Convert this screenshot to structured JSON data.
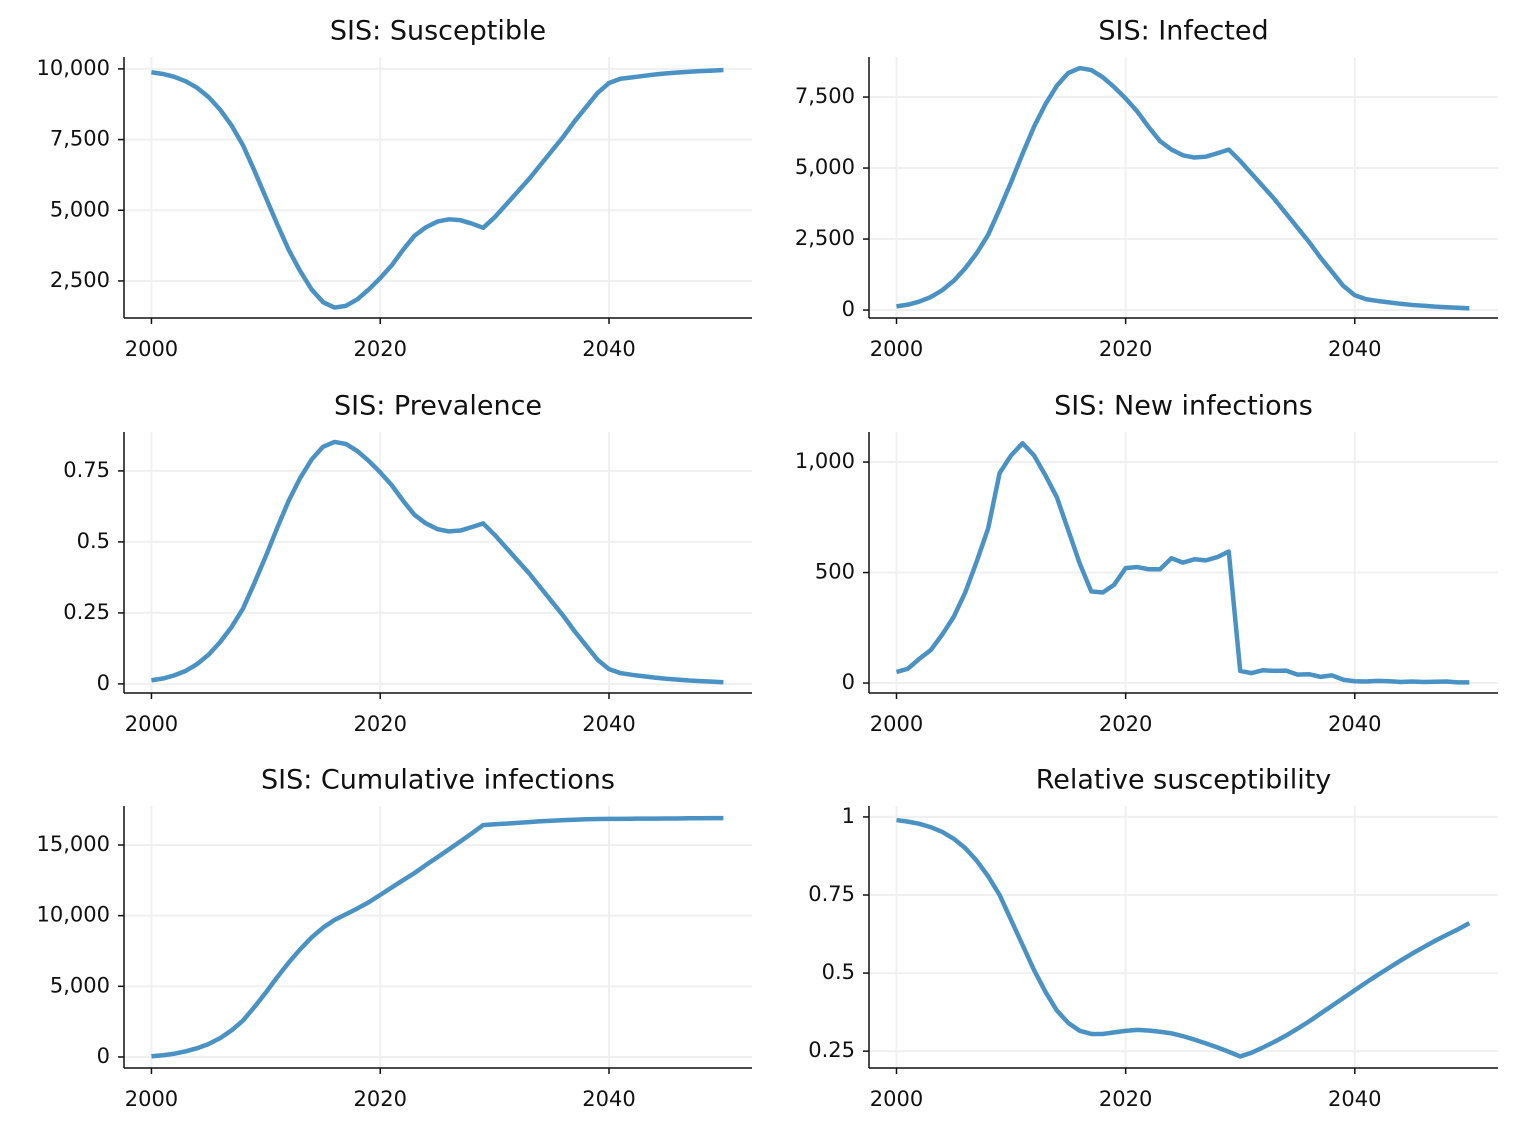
{
  "chart_data": [
    {
      "type": "line",
      "title": "SIS: Susceptible",
      "color": "#4b92c4",
      "grid": true,
      "x": [
        2000,
        2001,
        2002,
        2003,
        2004,
        2005,
        2006,
        2007,
        2008,
        2009,
        2010,
        2011,
        2012,
        2013,
        2014,
        2015,
        2016,
        2017,
        2018,
        2019,
        2020,
        2021,
        2022,
        2023,
        2024,
        2025,
        2026,
        2027,
        2028,
        2029,
        2030,
        2031,
        2032,
        2033,
        2034,
        2035,
        2036,
        2037,
        2038,
        2039,
        2040,
        2041,
        2042,
        2043,
        2044,
        2045,
        2046,
        2047,
        2048,
        2049,
        2050
      ],
      "values": [
        9880,
        9820,
        9720,
        9560,
        9330,
        9000,
        8560,
        8000,
        7300,
        6400,
        5450,
        4500,
        3600,
        2850,
        2200,
        1750,
        1560,
        1620,
        1850,
        2200,
        2600,
        3050,
        3600,
        4100,
        4400,
        4600,
        4680,
        4650,
        4530,
        4380,
        4750,
        5200,
        5650,
        6100,
        6600,
        7100,
        7600,
        8150,
        8650,
        9150,
        9500,
        9650,
        9700,
        9750,
        9800,
        9840,
        9870,
        9900,
        9920,
        9940,
        9960
      ],
      "xlim": [
        1997.6,
        2052.5
      ],
      "xticks": [
        2000,
        2020,
        2040
      ],
      "ylim": [
        1190,
        10420
      ],
      "yticks": [
        {
          "value": 2500,
          "label": "2,500"
        },
        {
          "value": 5000,
          "label": "5,000"
        },
        {
          "value": 7500,
          "label": "7,500"
        },
        {
          "value": 10000,
          "label": "10,000"
        }
      ]
    },
    {
      "type": "line",
      "title": "SIS: Infected",
      "color": "#4b92c4",
      "grid": true,
      "x": [
        2000,
        2001,
        2002,
        2003,
        2004,
        2005,
        2006,
        2007,
        2008,
        2009,
        2010,
        2011,
        2012,
        2013,
        2014,
        2015,
        2016,
        2017,
        2018,
        2019,
        2020,
        2021,
        2022,
        2023,
        2024,
        2025,
        2026,
        2027,
        2028,
        2029,
        2030,
        2031,
        2032,
        2033,
        2034,
        2035,
        2036,
        2037,
        2038,
        2039,
        2040,
        2041,
        2042,
        2043,
        2044,
        2045,
        2046,
        2047,
        2048,
        2049,
        2050
      ],
      "values": [
        130,
        190,
        300,
        460,
        700,
        1030,
        1470,
        2000,
        2650,
        3550,
        4500,
        5500,
        6450,
        7250,
        7900,
        8350,
        8520,
        8450,
        8200,
        7850,
        7450,
        7000,
        6450,
        5950,
        5650,
        5450,
        5370,
        5400,
        5520,
        5650,
        5250,
        4800,
        4350,
        3900,
        3400,
        2900,
        2400,
        1850,
        1350,
        850,
        520,
        380,
        320,
        270,
        220,
        180,
        150,
        120,
        100,
        80,
        60
      ],
      "xlim": [
        1997.6,
        2052.5
      ],
      "xticks": [
        2000,
        2020,
        2040
      ],
      "ylim": [
        -280,
        8910
      ],
      "yticks": [
        0,
        {
          "value": 2500,
          "label": "2,500"
        },
        {
          "value": 5000,
          "label": "5,000"
        },
        {
          "value": 7500,
          "label": "7,500"
        }
      ]
    },
    {
      "type": "line",
      "title": "SIS: Prevalence",
      "color": "#4b92c4",
      "grid": true,
      "x": [
        2000,
        2001,
        2002,
        2003,
        2004,
        2005,
        2006,
        2007,
        2008,
        2009,
        2010,
        2011,
        2012,
        2013,
        2014,
        2015,
        2016,
        2017,
        2018,
        2019,
        2020,
        2021,
        2022,
        2023,
        2024,
        2025,
        2026,
        2027,
        2028,
        2029,
        2030,
        2031,
        2032,
        2033,
        2034,
        2035,
        2036,
        2037,
        2038,
        2039,
        2040,
        2041,
        2042,
        2043,
        2044,
        2045,
        2046,
        2047,
        2048,
        2049,
        2050
      ],
      "values": [
        0.013,
        0.019,
        0.03,
        0.046,
        0.07,
        0.103,
        0.147,
        0.2,
        0.265,
        0.355,
        0.45,
        0.55,
        0.645,
        0.725,
        0.79,
        0.835,
        0.852,
        0.845,
        0.82,
        0.785,
        0.745,
        0.7,
        0.645,
        0.595,
        0.565,
        0.545,
        0.537,
        0.54,
        0.552,
        0.565,
        0.525,
        0.48,
        0.435,
        0.39,
        0.34,
        0.29,
        0.24,
        0.185,
        0.135,
        0.085,
        0.052,
        0.038,
        0.032,
        0.027,
        0.022,
        0.018,
        0.015,
        0.012,
        0.01,
        0.008,
        0.006
      ],
      "xlim": [
        1997.6,
        2052.5
      ],
      "xticks": [
        2000,
        2020,
        2040
      ],
      "ylim": [
        -0.032,
        0.887
      ],
      "yticks": [
        0,
        0.25,
        0.5,
        0.75
      ]
    },
    {
      "type": "line",
      "title": "SIS: New infections",
      "color": "#4b92c4",
      "grid": true,
      "x": [
        2000,
        2001,
        2002,
        2003,
        2004,
        2005,
        2006,
        2007,
        2008,
        2009,
        2010,
        2011,
        2012,
        2013,
        2014,
        2015,
        2016,
        2017,
        2018,
        2019,
        2020,
        2021,
        2022,
        2023,
        2024,
        2025,
        2026,
        2027,
        2028,
        2029,
        2030,
        2031,
        2032,
        2033,
        2034,
        2035,
        2036,
        2037,
        2038,
        2039,
        2040,
        2041,
        2042,
        2043,
        2044,
        2045,
        2046,
        2047,
        2048,
        2049,
        2050
      ],
      "values": [
        50,
        65,
        110,
        150,
        220,
        300,
        410,
        550,
        700,
        950,
        1030,
        1085,
        1030,
        940,
        840,
        690,
        540,
        415,
        410,
        445,
        520,
        525,
        515,
        515,
        565,
        545,
        560,
        555,
        570,
        595,
        55,
        45,
        58,
        55,
        56,
        38,
        40,
        28,
        35,
        15,
        8,
        7,
        10,
        8,
        5,
        7,
        5,
        6,
        7,
        3,
        3
      ],
      "xlim": [
        1997.6,
        2052.5
      ],
      "xticks": [
        2000,
        2020,
        2040
      ],
      "ylim": [
        -45,
        1136
      ],
      "yticks": [
        0,
        500,
        {
          "value": 1000,
          "label": "1,000"
        }
      ]
    },
    {
      "type": "line",
      "title": "SIS: Cumulative infections",
      "color": "#4b92c4",
      "grid": true,
      "x": [
        2000,
        2001,
        2002,
        2003,
        2004,
        2005,
        2006,
        2007,
        2008,
        2009,
        2010,
        2011,
        2012,
        2013,
        2014,
        2015,
        2016,
        2017,
        2018,
        2019,
        2020,
        2021,
        2022,
        2023,
        2024,
        2025,
        2026,
        2027,
        2028,
        2029,
        2030,
        2031,
        2032,
        2033,
        2034,
        2035,
        2036,
        2037,
        2038,
        2039,
        2040,
        2041,
        2042,
        2043,
        2044,
        2045,
        2046,
        2047,
        2048,
        2049,
        2050
      ],
      "values": [
        50,
        120,
        230,
        400,
        620,
        920,
        1330,
        1880,
        2580,
        3530,
        4560,
        5650,
        6680,
        7620,
        8460,
        9150,
        9690,
        10100,
        10510,
        10950,
        11470,
        11990,
        12510,
        13020,
        13590,
        14130,
        14690,
        15250,
        15820,
        16410,
        16470,
        16510,
        16570,
        16620,
        16680,
        16720,
        16760,
        16790,
        16820,
        16840,
        16850,
        16850,
        16860,
        16870,
        16870,
        16880,
        16880,
        16890,
        16890,
        16900,
        16900
      ],
      "xlim": [
        1997.6,
        2052.5
      ],
      "xticks": [
        2000,
        2020,
        2040
      ],
      "ylim": [
        -780,
        17760
      ],
      "yticks": [
        0,
        {
          "value": 5000,
          "label": "5,000"
        },
        {
          "value": 10000,
          "label": "10,000"
        },
        {
          "value": 15000,
          "label": "15,000"
        }
      ]
    },
    {
      "type": "line",
      "title": "Relative susceptibility",
      "color": "#4b92c4",
      "grid": true,
      "x": [
        2000,
        2001,
        2002,
        2003,
        2004,
        2005,
        2006,
        2007,
        2008,
        2009,
        2010,
        2011,
        2012,
        2013,
        2014,
        2015,
        2016,
        2017,
        2018,
        2019,
        2020,
        2021,
        2022,
        2023,
        2024,
        2025,
        2026,
        2027,
        2028,
        2029,
        2030,
        2031,
        2032,
        2033,
        2034,
        2035,
        2036,
        2037,
        2038,
        2039,
        2040,
        2041,
        2042,
        2043,
        2044,
        2045,
        2046,
        2047,
        2048,
        2049,
        2050
      ],
      "values": [
        0.99,
        0.985,
        0.978,
        0.967,
        0.952,
        0.93,
        0.9,
        0.86,
        0.81,
        0.75,
        0.67,
        0.59,
        0.51,
        0.44,
        0.38,
        0.34,
        0.315,
        0.305,
        0.305,
        0.31,
        0.315,
        0.318,
        0.316,
        0.312,
        0.307,
        0.298,
        0.287,
        0.275,
        0.262,
        0.248,
        0.233,
        0.245,
        0.262,
        0.28,
        0.3,
        0.322,
        0.345,
        0.37,
        0.395,
        0.42,
        0.445,
        0.47,
        0.494,
        0.517,
        0.54,
        0.562,
        0.583,
        0.603,
        0.622,
        0.64,
        0.66
      ],
      "xlim": [
        1997.6,
        2052.5
      ],
      "xticks": [
        2000,
        2020,
        2040
      ],
      "ylim": [
        0.196,
        1.035
      ],
      "yticks": [
        0.25,
        0.5,
        0.75,
        1
      ]
    }
  ]
}
